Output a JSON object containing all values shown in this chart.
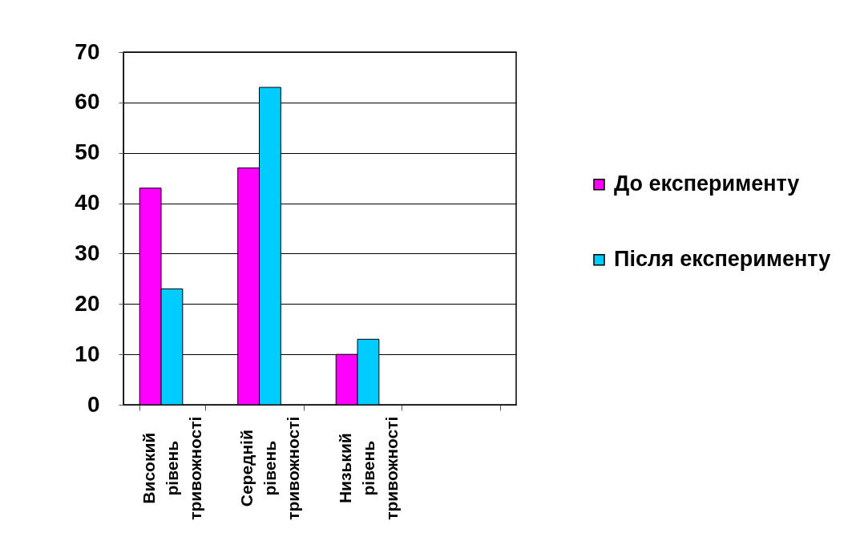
{
  "chart_data": {
    "type": "bar",
    "categories": [
      "Високий рівень тривожності",
      "Середній рівень тривожності",
      "Низький рівень тривожності",
      null
    ],
    "series": [
      {
        "name": "До експерименту",
        "color": "#ff00ff",
        "values": [
          43,
          47,
          10,
          null
        ]
      },
      {
        "name": "Після експерименту",
        "color": "#00ccff",
        "values": [
          23,
          63,
          13,
          null
        ]
      }
    ],
    "ylim": [
      0,
      70
    ],
    "yticks": [
      0,
      10,
      20,
      30,
      40,
      50,
      60,
      70
    ],
    "grid": "y",
    "legend": "right"
  }
}
